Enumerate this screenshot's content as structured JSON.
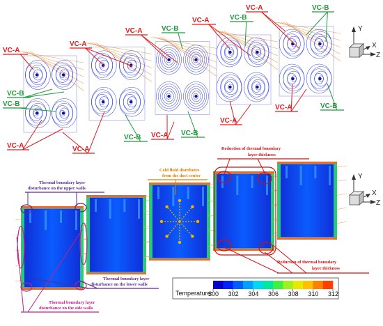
{
  "vortex_labels": {
    "vc_a": "VC-A",
    "vc_b": "VC-B"
  },
  "axes": {
    "y": "Y",
    "x": "X",
    "z": "Z"
  },
  "annotations": {
    "cold_fluid_line1": "Cold fluid distributes",
    "cold_fluid_line2": "from the duct center",
    "reduction_top_line1": "Reduction of thermal boundary",
    "reduction_top_line2": "layer thickness",
    "reduction_bottom_line1": "Reduction of thermal boundary",
    "reduction_bottom_line2": "layer thickness",
    "upper_walls_line1": "Thermal boundary layer",
    "upper_walls_line2": "disturbance on the upper walls",
    "lower_walls_line1": "Thermal boundary layer",
    "lower_walls_line2": "disturbance on the lower walls",
    "side_walls_line1": "Thermal boundary layer",
    "side_walls_line2": "disturbance on the side walls"
  },
  "colorbar": {
    "label": "Temperature:",
    "ticks": [
      "300",
      "302",
      "304",
      "306",
      "308",
      "310",
      "312"
    ],
    "colors": [
      "#0000c8",
      "#0020ff",
      "#0060ff",
      "#00a0ff",
      "#00d8f0",
      "#00e8a0",
      "#40f040",
      "#a0f020",
      "#e8e800",
      "#ffc000",
      "#ff8000",
      "#ff4000"
    ]
  },
  "colors": {
    "vc_a": "#e41a1c",
    "vc_b": "#1f9a3a",
    "streamline": "#2233dd",
    "orange_note": "#e87a00",
    "purple_note": "#5a2a8a",
    "magenta_note": "#c0208a",
    "red_note": "#d01010"
  }
}
